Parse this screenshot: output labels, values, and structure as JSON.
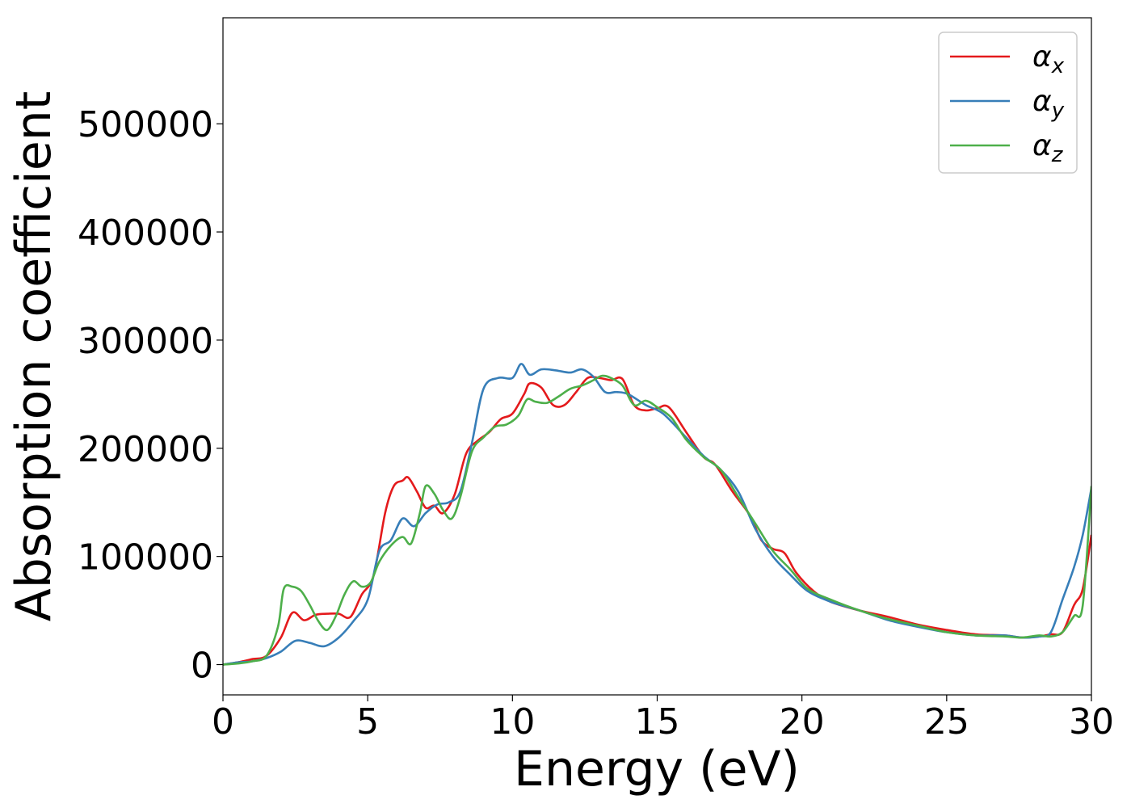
{
  "chart_data": {
    "type": "line",
    "title": "",
    "xlabel": "Energy (eV)",
    "ylabel": "Absorption coefficient",
    "xlim": [
      0,
      30
    ],
    "ylim": [
      -28000,
      598000
    ],
    "xticks": [
      0,
      5,
      10,
      15,
      20,
      25,
      30
    ],
    "yticks": [
      0,
      100000,
      200000,
      300000,
      400000,
      500000
    ],
    "grid": false,
    "legend_position": "top-right",
    "series": [
      {
        "name": "αx",
        "legend_base": "α",
        "legend_sub": "x",
        "color": "#e41a1c",
        "x": [
          0,
          0.5,
          1.0,
          1.5,
          2.0,
          2.4,
          2.8,
          3.2,
          3.6,
          4.0,
          4.4,
          4.8,
          5.2,
          5.6,
          5.9,
          6.2,
          6.4,
          6.7,
          7.0,
          7.3,
          7.6,
          8.0,
          8.4,
          8.8,
          9.2,
          9.6,
          10.0,
          10.4,
          10.6,
          11.0,
          11.4,
          11.8,
          12.2,
          12.6,
          13.0,
          13.4,
          13.8,
          14.2,
          14.6,
          15.0,
          15.4,
          16.0,
          16.6,
          17.0,
          17.6,
          18.2,
          18.6,
          19.0,
          19.4,
          19.8,
          20.4,
          21.0,
          22.0,
          23.0,
          24.0,
          25.0,
          26.0,
          27.0,
          27.6,
          28.2,
          28.6,
          29.0,
          29.4,
          29.7,
          30.0
        ],
        "values": [
          0,
          2000,
          5000,
          8000,
          25000,
          48000,
          41000,
          46000,
          47000,
          47000,
          44000,
          65000,
          82000,
          140000,
          165000,
          170000,
          173000,
          160000,
          145000,
          147000,
          140000,
          157000,
          195000,
          207000,
          215000,
          227000,
          232000,
          250000,
          260000,
          256000,
          240000,
          240000,
          252000,
          265000,
          265000,
          263000,
          264000,
          240000,
          235000,
          237000,
          238000,
          215000,
          192000,
          185000,
          160000,
          138000,
          115000,
          107000,
          103000,
          85000,
          68000,
          58000,
          50000,
          44000,
          37000,
          32000,
          28000,
          27000,
          25000,
          26000,
          28000,
          30000,
          55000,
          70000,
          120000
        ]
      },
      {
        "name": "αy",
        "legend_base": "α",
        "legend_sub": "y",
        "color": "#377eb8",
        "x": [
          0,
          0.5,
          1.0,
          1.5,
          2.0,
          2.5,
          3.0,
          3.5,
          4.0,
          4.5,
          5.0,
          5.4,
          5.8,
          6.2,
          6.6,
          7.0,
          7.4,
          7.8,
          8.2,
          8.6,
          9.0,
          9.5,
          10.0,
          10.3,
          10.6,
          11.0,
          11.5,
          12.0,
          12.4,
          12.8,
          13.2,
          13.6,
          14.0,
          14.6,
          15.2,
          16.0,
          16.6,
          17.2,
          17.8,
          18.4,
          19.0,
          19.6,
          20.2,
          21.0,
          22.0,
          23.0,
          24.0,
          25.0,
          26.0,
          27.0,
          27.6,
          28.2,
          28.6,
          29.0,
          29.4,
          29.7,
          30.0
        ],
        "values": [
          0,
          2000,
          3000,
          6000,
          12000,
          22000,
          20000,
          17000,
          25000,
          40000,
          60000,
          105000,
          115000,
          135000,
          128000,
          140000,
          148000,
          150000,
          160000,
          205000,
          255000,
          265000,
          265000,
          278000,
          268000,
          273000,
          272000,
          270000,
          273000,
          266000,
          252000,
          252000,
          250000,
          240000,
          232000,
          210000,
          193000,
          180000,
          160000,
          125000,
          100000,
          83000,
          68000,
          58000,
          50000,
          41000,
          35000,
          30000,
          27000,
          27000,
          25000,
          26000,
          30000,
          60000,
          90000,
          120000,
          163000
        ]
      },
      {
        "name": "αz",
        "legend_base": "α",
        "legend_sub": "z",
        "color": "#4daf4a",
        "x": [
          0,
          0.5,
          1.0,
          1.5,
          1.9,
          2.1,
          2.4,
          2.7,
          3.0,
          3.3,
          3.6,
          3.9,
          4.2,
          4.5,
          4.8,
          5.1,
          5.4,
          5.8,
          6.2,
          6.5,
          6.8,
          7.0,
          7.3,
          7.6,
          7.9,
          8.2,
          8.6,
          9.0,
          9.4,
          9.8,
          10.2,
          10.5,
          10.8,
          11.2,
          11.6,
          12.0,
          12.4,
          12.8,
          13.1,
          13.4,
          13.8,
          14.2,
          14.6,
          15.0,
          15.5,
          16.0,
          16.6,
          17.2,
          17.8,
          18.4,
          19.0,
          19.6,
          20.2,
          21.0,
          22.0,
          23.0,
          24.0,
          25.0,
          26.0,
          27.0,
          27.6,
          28.2,
          28.6,
          29.0,
          29.4,
          29.7,
          30.0
        ],
        "values": [
          0,
          1000,
          3000,
          8000,
          35000,
          70000,
          72000,
          68000,
          55000,
          40000,
          32000,
          45000,
          65000,
          77000,
          72000,
          76000,
          95000,
          110000,
          118000,
          112000,
          140000,
          165000,
          158000,
          143000,
          135000,
          155000,
          197000,
          210000,
          220000,
          222000,
          230000,
          245000,
          243000,
          242000,
          248000,
          255000,
          258000,
          263000,
          267000,
          265000,
          258000,
          240000,
          244000,
          238000,
          228000,
          208000,
          192000,
          180000,
          155000,
          130000,
          105000,
          88000,
          70000,
          60000,
          50000,
          42000,
          36000,
          30000,
          27000,
          26000,
          25000,
          27000,
          26000,
          30000,
          45000,
          55000,
          165000
        ]
      }
    ]
  }
}
